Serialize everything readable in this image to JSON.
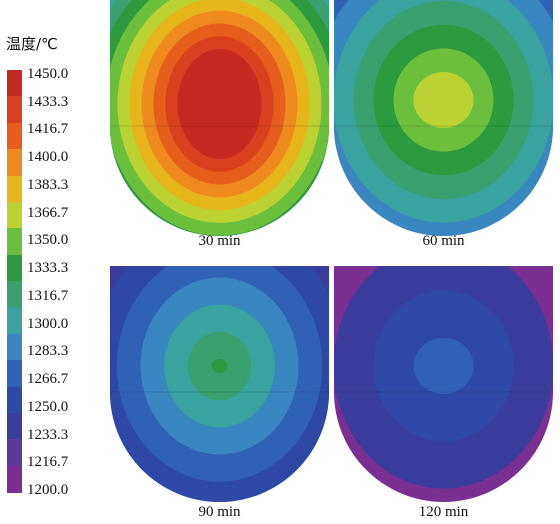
{
  "legend": {
    "title": "温度/℃",
    "levels": [
      "1450.0",
      "1433.3",
      "1416.7",
      "1400.0",
      "1383.3",
      "1366.7",
      "1350.0",
      "1333.3",
      "1316.7",
      "1300.0",
      "1283.3",
      "1266.7",
      "1250.0",
      "1233.3",
      "1216.7",
      "1200.0"
    ],
    "colors": [
      "#c42a22",
      "#d9401f",
      "#e65d1c",
      "#ef8a1e",
      "#e6b51c",
      "#bcd233",
      "#6bbf3c",
      "#2e9a3e",
      "#3ba06f",
      "#3aa3a0",
      "#3a86c0",
      "#2f62b4",
      "#2d49a5",
      "#3a3c9c",
      "#5b3a99",
      "#7b2f93"
    ]
  },
  "panels": [
    {
      "caption": "30 min",
      "rings": [
        "#3aa3a0",
        "#3ba06f",
        "#2e9a3e",
        "#6bbf3c",
        "#bcd233",
        "#e6b51c",
        "#ef8a1e",
        "#e65d1c",
        "#d9401f",
        "#c42a22"
      ]
    },
    {
      "caption": "60 min",
      "rings": [
        "#2f62b4",
        "#3a86c0",
        "#3aa3a0",
        "#3ba06f",
        "#2e9a3e",
        "#6bbf3c",
        "#bcd233"
      ]
    },
    {
      "caption": "90 min",
      "rings": [
        "#3a3c9c",
        "#2d49a5",
        "#2f62b4",
        "#3a86c0",
        "#3aa3a0",
        "#3ba06f",
        "#2e9a3e"
      ]
    },
    {
      "caption": "120 min",
      "rings": [
        "#7b2f93",
        "#3a3c9c",
        "#2d49a5",
        "#2f62b4"
      ]
    }
  ]
}
